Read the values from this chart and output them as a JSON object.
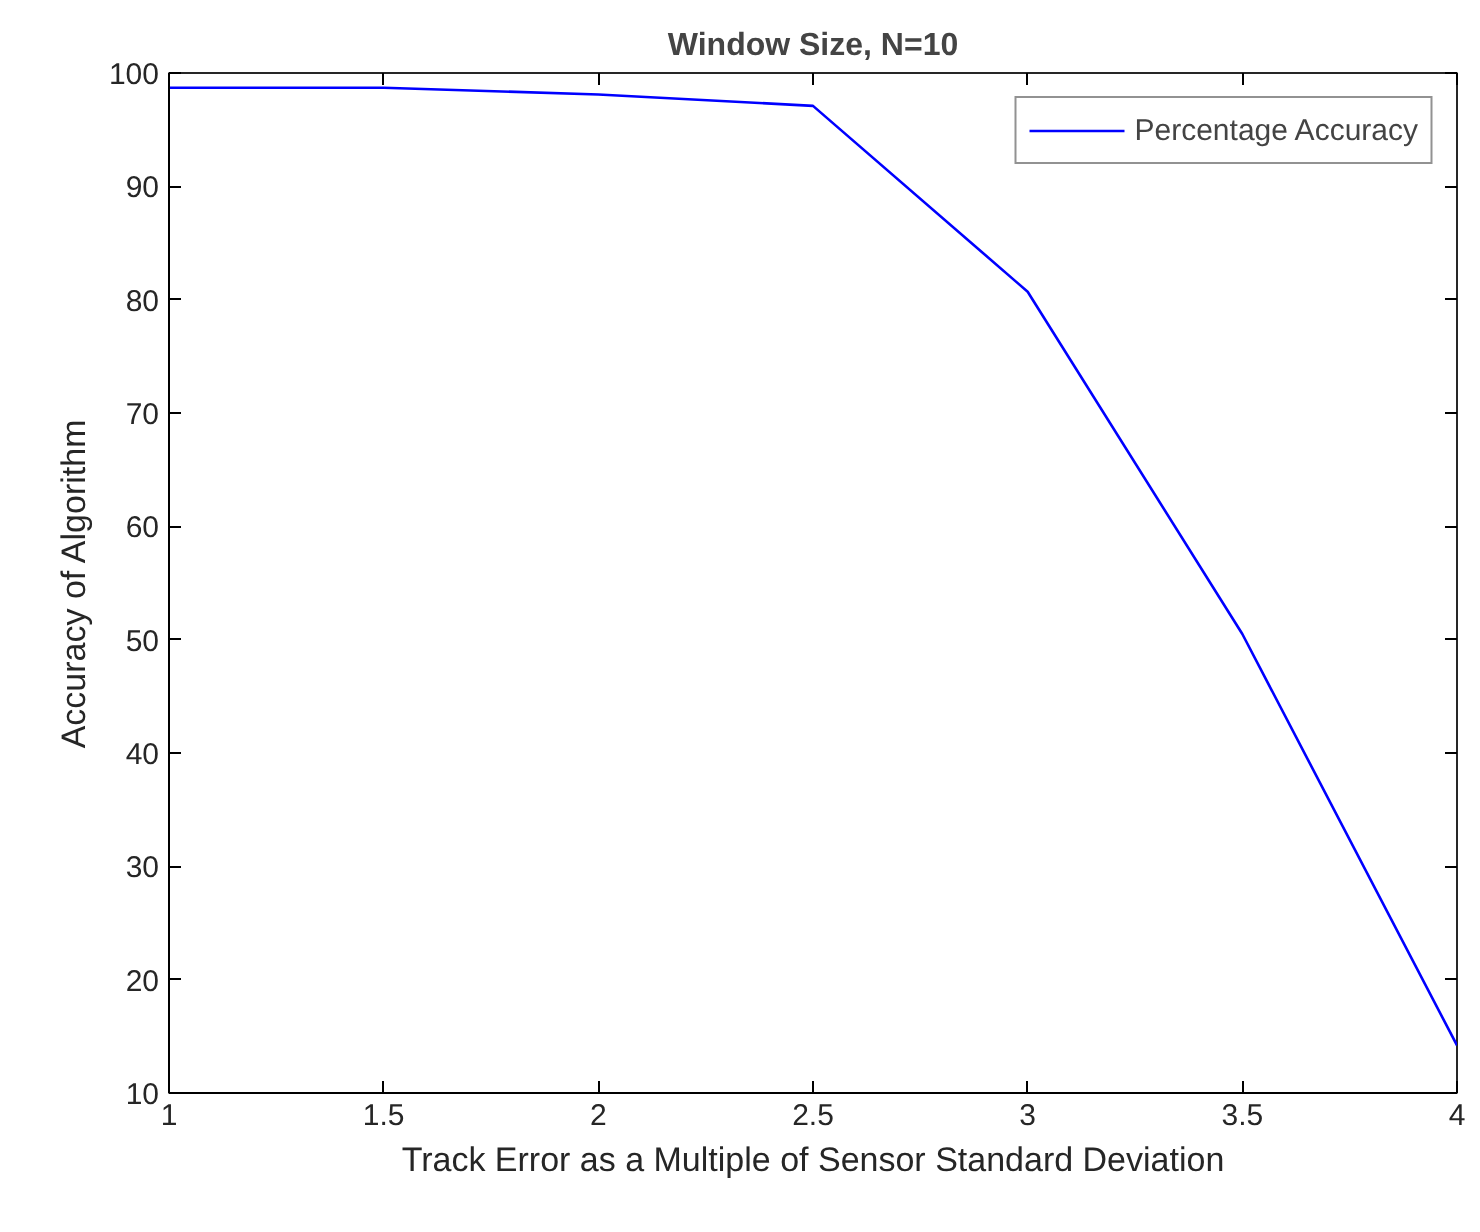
{
  "chart_data": {
    "type": "line",
    "title": "Window Size, N=10",
    "xlabel": "Track Error as a Multiple of Sensor Standard Deviation",
    "ylabel": "Accuracy of Algorithm",
    "x": [
      1,
      1.5,
      2,
      2.5,
      3,
      3.5,
      4
    ],
    "series": [
      {
        "name": "Percentage Accuracy",
        "color": "#0000ff",
        "values": [
          98.7,
          98.7,
          98.1,
          97.1,
          80.7,
          50.5,
          14.2
        ]
      }
    ],
    "xlim": [
      1,
      4
    ],
    "xticks": [
      1,
      1.5,
      2,
      2.5,
      3,
      3.5,
      4
    ],
    "ylim": [
      10,
      100
    ],
    "yticks": [
      10,
      20,
      30,
      40,
      50,
      60,
      70,
      80,
      90,
      100
    ],
    "grid": false,
    "legend": "top right",
    "marker": "none",
    "line_style": "solid"
  }
}
